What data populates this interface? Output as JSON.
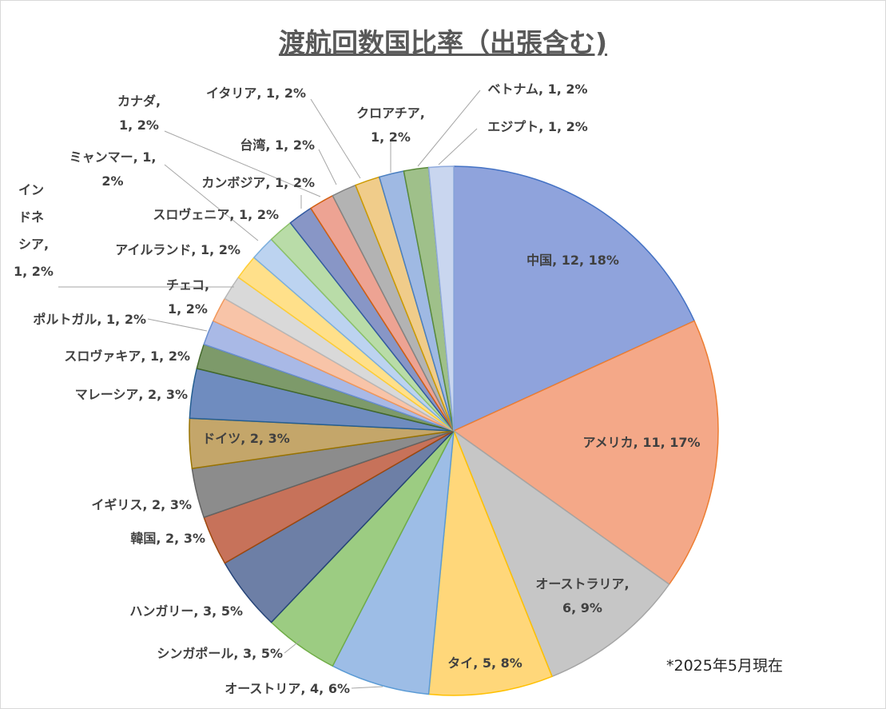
{
  "chart_data": {
    "type": "pie",
    "title": "渡航回数国比率（出張含む)",
    "note": "*2025年5月現在",
    "slices": [
      {
        "label": "中国",
        "value": 12,
        "pct": "18%",
        "color": "#8fa3dc",
        "stroke": "#4472c4"
      },
      {
        "label": "アメリカ",
        "value": 11,
        "pct": "17%",
        "color": "#f4a888",
        "stroke": "#ed7d31"
      },
      {
        "label": "オーストラリア",
        "value": 6,
        "pct": "9%",
        "color": "#c6c6c6",
        "stroke": "#a5a5a5"
      },
      {
        "label": "タイ",
        "value": 5,
        "pct": "8%",
        "color": "#ffd77a",
        "stroke": "#ffc000"
      },
      {
        "label": "オーストリア",
        "value": 4,
        "pct": "6%",
        "color": "#9dbde6",
        "stroke": "#5b9bd5"
      },
      {
        "label": "シンガポール",
        "value": 3,
        "pct": "5%",
        "color": "#9ccc82",
        "stroke": "#70ad47"
      },
      {
        "label": "ハンガリー",
        "value": 3,
        "pct": "5%",
        "color": "#6d7fa6",
        "stroke": "#264478"
      },
      {
        "label": "韓国",
        "value": 2,
        "pct": "3%",
        "color": "#c7725a",
        "stroke": "#9e480e"
      },
      {
        "label": "イギリス",
        "value": 2,
        "pct": "3%",
        "color": "#8c8c8c",
        "stroke": "#636363"
      },
      {
        "label": "ドイツ",
        "value": 2,
        "pct": "3%",
        "color": "#c4a66a",
        "stroke": "#997300"
      },
      {
        "label": "マレーシア",
        "value": 2,
        "pct": "3%",
        "color": "#6f8cbf",
        "stroke": "#255e91"
      },
      {
        "label": "スロヴァキア",
        "value": 1,
        "pct": "2%",
        "color": "#7d9a6a",
        "stroke": "#43682b"
      },
      {
        "label": "ポルトガル",
        "value": 1,
        "pct": "2%",
        "color": "#a9b9e6",
        "stroke": "#698ed0"
      },
      {
        "label": "チェコ",
        "value": 1,
        "pct": "2%",
        "color": "#f8c4a8",
        "stroke": "#f1975a"
      },
      {
        "label": "インドネシア",
        "value": 1,
        "pct": "2%",
        "color": "#d9d9d9",
        "stroke": "#b7b7b7"
      },
      {
        "label": "アイルランド",
        "value": 1,
        "pct": "2%",
        "color": "#ffe08a",
        "stroke": "#ffcd33"
      },
      {
        "label": "スロヴェニア",
        "value": 1,
        "pct": "2%",
        "color": "#bcd3f0",
        "stroke": "#7cafdd"
      },
      {
        "label": "カンボジア",
        "value": 1,
        "pct": "2%",
        "color": "#b9dca8",
        "stroke": "#8cc168"
      },
      {
        "label": "ミャンマー",
        "value": 1,
        "pct": "2%",
        "color": "#8896c6",
        "stroke": "#335aa1"
      },
      {
        "label": "カナダ",
        "value": 1,
        "pct": "2%",
        "color": "#eda393",
        "stroke": "#d26012"
      },
      {
        "label": "台湾",
        "value": 1,
        "pct": "2%",
        "color": "#b3b3b3",
        "stroke": "#848484"
      },
      {
        "label": "イタリア",
        "value": 1,
        "pct": "2%",
        "color": "#f0cc8a",
        "stroke": "#cc9a00"
      },
      {
        "label": "クロアチア",
        "value": 1,
        "pct": "2%",
        "color": "#9fb9e3",
        "stroke": "#4a7fc0"
      },
      {
        "label": "ベトナム",
        "value": 1,
        "pct": "2%",
        "color": "#9fc08a",
        "stroke": "#5a8a3a"
      },
      {
        "label": "エジプト",
        "value": 1,
        "pct": "2%",
        "color": "#c9d6ef",
        "stroke": "#8faadc"
      }
    ]
  }
}
